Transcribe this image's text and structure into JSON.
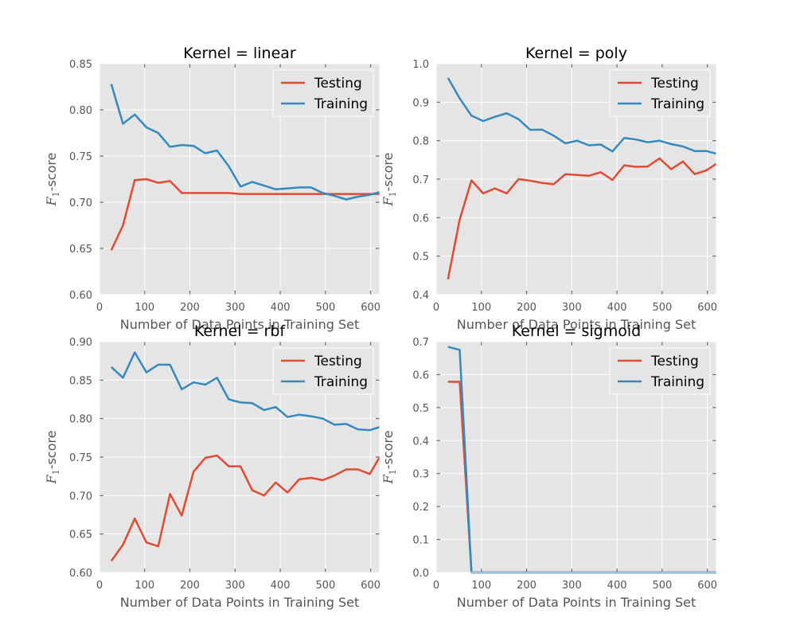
{
  "chart_data": [
    {
      "type": "line",
      "title": "Kernel = linear",
      "xlabel": "Number of Data Points in Training Set",
      "ylabel_symbol": "F",
      "ylabel_subscript": "1",
      "ylabel_suffix": "-score",
      "xlim": [
        0,
        620
      ],
      "ylim": [
        0.6,
        0.85
      ],
      "xticks": [
        0,
        100,
        200,
        300,
        400,
        500,
        600
      ],
      "xtick_labels": [
        "0",
        "100",
        "200",
        "300",
        "400",
        "500",
        "600"
      ],
      "yticks": [
        0.6,
        0.65,
        0.7,
        0.75,
        0.8,
        0.85
      ],
      "ytick_labels": [
        "0.60",
        "0.65",
        "0.70",
        "0.75",
        "0.80",
        "0.85"
      ],
      "grid": true,
      "legend_position": "top-right",
      "x": [
        26,
        52,
        78,
        104,
        130,
        156,
        182,
        208,
        234,
        260,
        286,
        312,
        338,
        364,
        390,
        416,
        442,
        468,
        494,
        520,
        546,
        572,
        598,
        620
      ],
      "series": [
        {
          "name": "Testing",
          "color": "#e24a33",
          "values": [
            0.648,
            0.675,
            0.724,
            0.725,
            0.721,
            0.723,
            0.71,
            0.71,
            0.71,
            0.71,
            0.71,
            0.709,
            0.709,
            0.709,
            0.709,
            0.709,
            0.709,
            0.709,
            0.709,
            0.709,
            0.709,
            0.709,
            0.709,
            0.709
          ]
        },
        {
          "name": "Training",
          "color": "#348abd",
          "values": [
            0.828,
            0.785,
            0.795,
            0.781,
            0.775,
            0.76,
            0.762,
            0.761,
            0.753,
            0.756,
            0.739,
            0.717,
            0.722,
            0.718,
            0.714,
            0.715,
            0.716,
            0.716,
            0.71,
            0.707,
            0.703,
            0.706,
            0.708,
            0.711
          ]
        }
      ]
    },
    {
      "type": "line",
      "title": "Kernel = poly",
      "xlabel": "Number of Data Points in Training Set",
      "ylabel_symbol": "F",
      "ylabel_subscript": "1",
      "ylabel_suffix": "-score",
      "xlim": [
        0,
        620
      ],
      "ylim": [
        0.4,
        1.0
      ],
      "xticks": [
        0,
        100,
        200,
        300,
        400,
        500,
        600
      ],
      "xtick_labels": [
        "0",
        "100",
        "200",
        "300",
        "400",
        "500",
        "600"
      ],
      "yticks": [
        0.4,
        0.5,
        0.6,
        0.7,
        0.8,
        0.9,
        1.0
      ],
      "ytick_labels": [
        "0.4",
        "0.5",
        "0.6",
        "0.7",
        "0.8",
        "0.9",
        "1.0"
      ],
      "grid": true,
      "legend_position": "top-right",
      "x": [
        26,
        52,
        78,
        104,
        130,
        156,
        182,
        208,
        234,
        260,
        286,
        312,
        338,
        364,
        390,
        416,
        442,
        468,
        494,
        520,
        546,
        572,
        598,
        620
      ],
      "series": [
        {
          "name": "Testing",
          "color": "#e24a33",
          "values": [
            0.44,
            0.595,
            0.697,
            0.663,
            0.676,
            0.663,
            0.7,
            0.696,
            0.69,
            0.687,
            0.713,
            0.711,
            0.709,
            0.718,
            0.698,
            0.736,
            0.732,
            0.733,
            0.754,
            0.726,
            0.746,
            0.713,
            0.723,
            0.74
          ]
        },
        {
          "name": "Training",
          "color": "#348abd",
          "values": [
            0.963,
            0.91,
            0.865,
            0.851,
            0.862,
            0.871,
            0.856,
            0.828,
            0.829,
            0.813,
            0.793,
            0.8,
            0.788,
            0.79,
            0.772,
            0.807,
            0.803,
            0.796,
            0.8,
            0.791,
            0.785,
            0.773,
            0.773,
            0.766
          ]
        }
      ]
    },
    {
      "type": "line",
      "title": "Kernel = rbf",
      "xlabel": "Number of Data Points in Training Set",
      "ylabel_symbol": "F",
      "ylabel_subscript": "1",
      "ylabel_suffix": "-score",
      "xlim": [
        0,
        620
      ],
      "ylim": [
        0.6,
        0.9
      ],
      "xticks": [
        0,
        100,
        200,
        300,
        400,
        500,
        600
      ],
      "xtick_labels": [
        "0",
        "100",
        "200",
        "300",
        "400",
        "500",
        "600"
      ],
      "yticks": [
        0.6,
        0.65,
        0.7,
        0.75,
        0.8,
        0.85,
        0.9
      ],
      "ytick_labels": [
        "0.60",
        "0.65",
        "0.70",
        "0.75",
        "0.80",
        "0.85",
        "0.90"
      ],
      "grid": true,
      "legend_position": "top-right",
      "x": [
        26,
        52,
        78,
        104,
        130,
        156,
        182,
        208,
        234,
        260,
        286,
        312,
        338,
        364,
        390,
        416,
        442,
        468,
        494,
        520,
        546,
        572,
        598,
        620
      ],
      "series": [
        {
          "name": "Testing",
          "color": "#e24a33",
          "values": [
            0.615,
            0.636,
            0.67,
            0.639,
            0.634,
            0.702,
            0.674,
            0.731,
            0.749,
            0.752,
            0.738,
            0.738,
            0.707,
            0.7,
            0.717,
            0.704,
            0.721,
            0.723,
            0.72,
            0.726,
            0.734,
            0.734,
            0.728,
            0.75
          ]
        },
        {
          "name": "Training",
          "color": "#348abd",
          "values": [
            0.867,
            0.853,
            0.886,
            0.86,
            0.87,
            0.87,
            0.838,
            0.847,
            0.844,
            0.853,
            0.825,
            0.821,
            0.82,
            0.811,
            0.815,
            0.802,
            0.805,
            0.803,
            0.8,
            0.792,
            0.793,
            0.786,
            0.785,
            0.789
          ]
        }
      ]
    },
    {
      "type": "line",
      "title": "Kernel = sigmoid",
      "xlabel": "Number of Data Points in Training Set",
      "ylabel_symbol": "F",
      "ylabel_subscript": "1",
      "ylabel_suffix": "-score",
      "xlim": [
        0,
        620
      ],
      "ylim": [
        0.0,
        0.7
      ],
      "xticks": [
        0,
        100,
        200,
        300,
        400,
        500,
        600
      ],
      "xtick_labels": [
        "0",
        "100",
        "200",
        "300",
        "400",
        "500",
        "600"
      ],
      "yticks": [
        0.0,
        0.1,
        0.2,
        0.3,
        0.4,
        0.5,
        0.6,
        0.7
      ],
      "ytick_labels": [
        "0.0",
        "0.1",
        "0.2",
        "0.3",
        "0.4",
        "0.5",
        "0.6",
        "0.7"
      ],
      "grid": true,
      "legend_position": "top-right",
      "x": [
        26,
        52,
        78,
        104,
        130,
        156,
        182,
        208,
        234,
        260,
        286,
        312,
        338,
        364,
        390,
        416,
        442,
        468,
        494,
        520,
        546,
        572,
        598,
        620
      ],
      "series": [
        {
          "name": "Testing",
          "color": "#e24a33",
          "values": [
            0.578,
            0.578,
            0.0,
            0.0,
            0.0,
            0.0,
            0.0,
            0.0,
            0.0,
            0.0,
            0.0,
            0.0,
            0.0,
            0.0,
            0.0,
            0.0,
            0.0,
            0.0,
            0.0,
            0.0,
            0.0,
            0.0,
            0.0,
            0.0
          ]
        },
        {
          "name": "Training",
          "color": "#348abd",
          "values": [
            0.684,
            0.675,
            0.0,
            0.0,
            0.0,
            0.0,
            0.0,
            0.0,
            0.0,
            0.0,
            0.0,
            0.0,
            0.0,
            0.0,
            0.0,
            0.0,
            0.0,
            0.0,
            0.0,
            0.0,
            0.0,
            0.0,
            0.0,
            0.0
          ]
        }
      ]
    }
  ]
}
